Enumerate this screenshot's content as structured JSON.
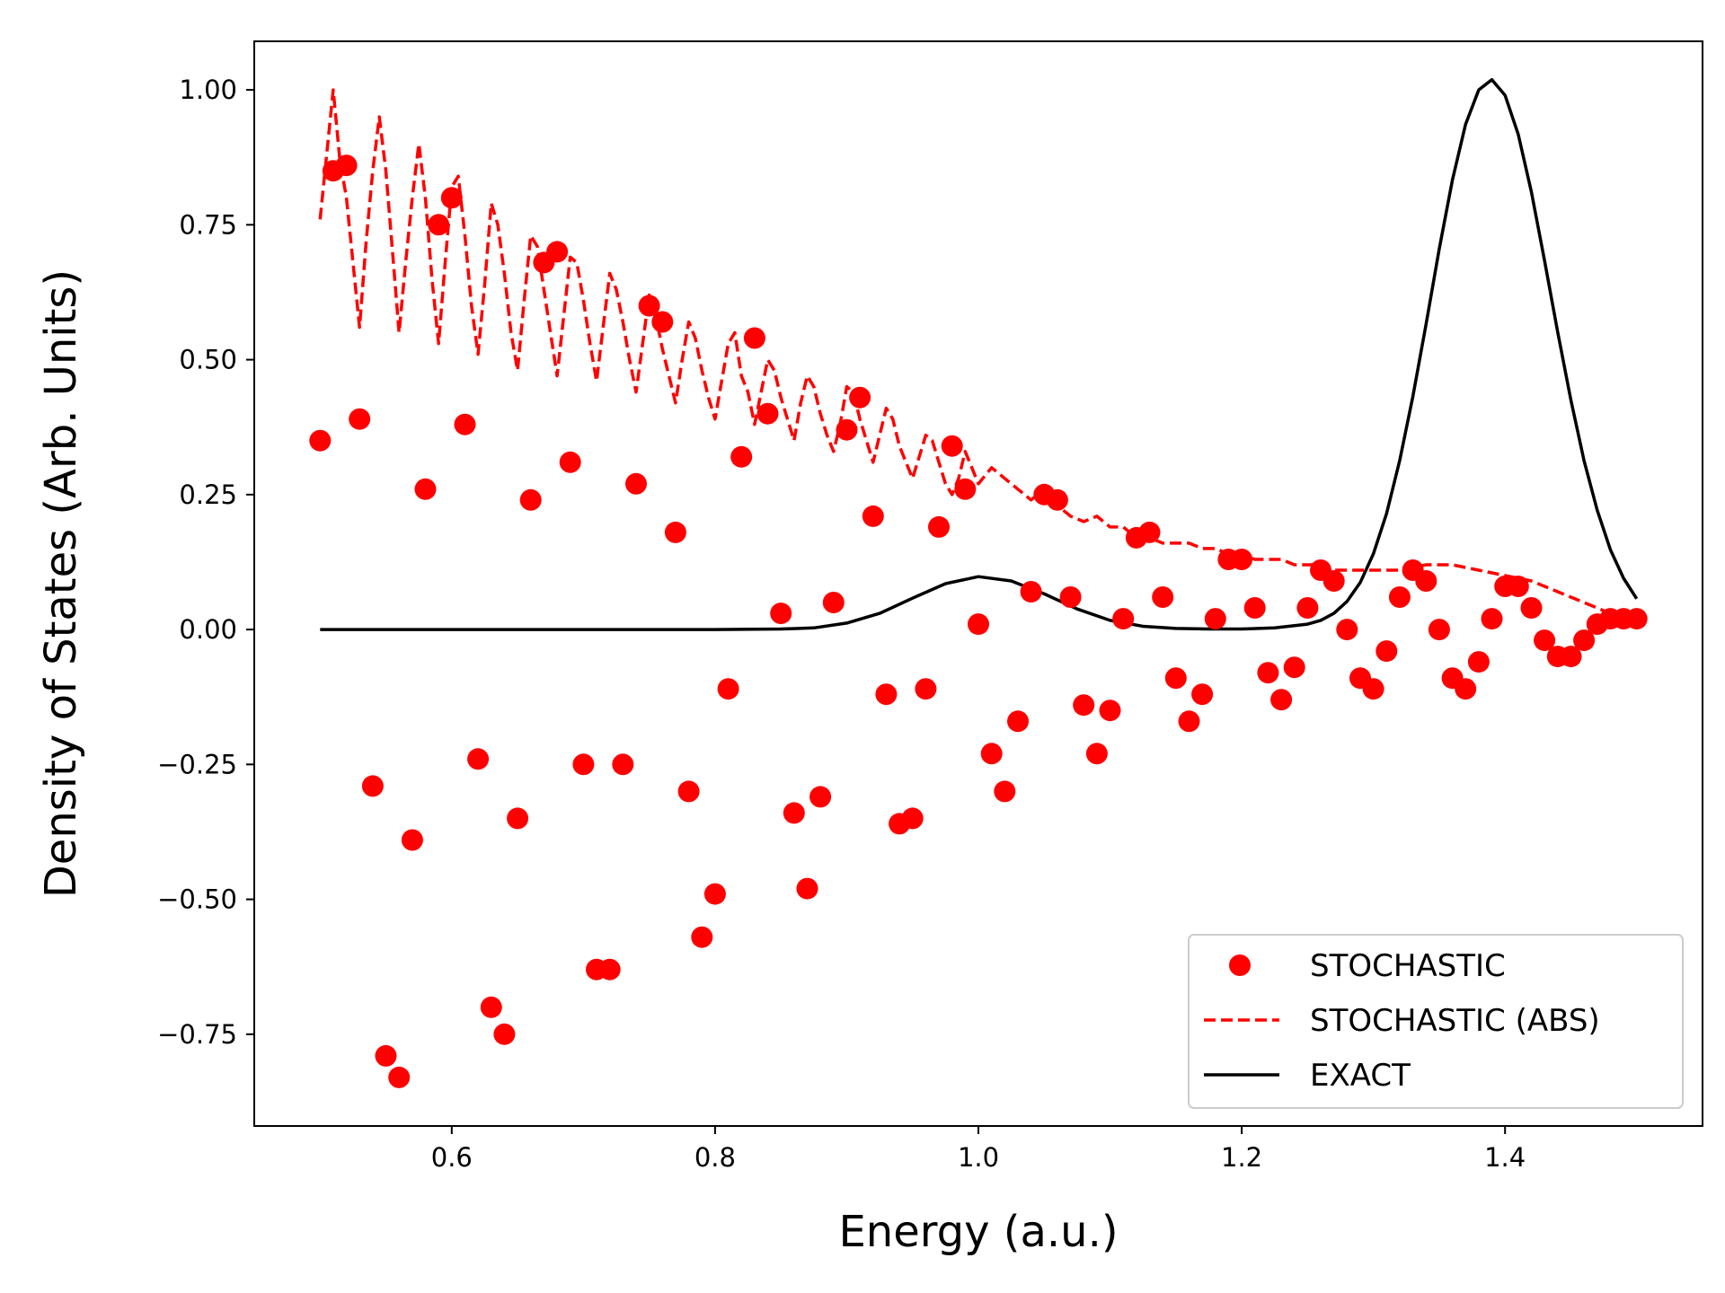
{
  "chart_data": {
    "type": "line",
    "title": "",
    "xlabel": "Energy (a.u.)",
    "ylabel": "Density of States (Arb. Units)",
    "xlim": [
      0.45,
      1.55
    ],
    "ylim": [
      -0.92,
      1.09
    ],
    "xticks": [
      0.6,
      0.8,
      1.0,
      1.2,
      1.4
    ],
    "xtick_labels": [
      "0.6",
      "0.8",
      "1.0",
      "1.2",
      "1.4"
    ],
    "yticks": [
      -0.75,
      -0.5,
      -0.25,
      0.0,
      0.25,
      0.5,
      0.75,
      1.0
    ],
    "ytick_labels": [
      "−0.75",
      "−0.50",
      "−0.25",
      "0.00",
      "0.25",
      "0.50",
      "0.75",
      "1.00"
    ],
    "grid": false,
    "legend_position": "bottom-right",
    "series": [
      {
        "name": "STOCHASTIC",
        "style": "markers",
        "color": "#ff0000",
        "x": [
          0.5,
          0.51,
          0.52,
          0.53,
          0.54,
          0.55,
          0.56,
          0.57,
          0.58,
          0.59,
          0.6,
          0.61,
          0.62,
          0.63,
          0.64,
          0.65,
          0.66,
          0.67,
          0.68,
          0.69,
          0.7,
          0.71,
          0.72,
          0.73,
          0.74,
          0.75,
          0.76,
          0.77,
          0.78,
          0.79,
          0.8,
          0.81,
          0.82,
          0.83,
          0.84,
          0.85,
          0.86,
          0.87,
          0.88,
          0.89,
          0.9,
          0.91,
          0.92,
          0.93,
          0.94,
          0.95,
          0.96,
          0.97,
          0.98,
          0.99,
          1.0,
          1.01,
          1.02,
          1.03,
          1.04,
          1.05,
          1.06,
          1.07,
          1.08,
          1.09,
          1.1,
          1.11,
          1.12,
          1.13,
          1.14,
          1.15,
          1.16,
          1.17,
          1.18,
          1.19,
          1.2,
          1.21,
          1.22,
          1.23,
          1.24,
          1.25,
          1.26,
          1.27,
          1.28,
          1.29,
          1.3,
          1.31,
          1.32,
          1.33,
          1.34,
          1.35,
          1.36,
          1.37,
          1.38,
          1.39,
          1.4,
          1.41,
          1.42,
          1.43,
          1.44,
          1.45,
          1.46,
          1.47,
          1.48,
          1.49,
          1.5
        ],
        "y": [
          0.35,
          0.85,
          0.86,
          0.39,
          -0.29,
          -0.79,
          -0.83,
          -0.39,
          0.26,
          0.75,
          0.8,
          0.38,
          -0.24,
          -0.7,
          -0.75,
          -0.35,
          0.24,
          0.68,
          0.7,
          0.31,
          -0.25,
          -0.63,
          -0.63,
          -0.25,
          0.27,
          0.6,
          0.57,
          0.18,
          -0.3,
          -0.57,
          -0.49,
          -0.11,
          0.32,
          0.54,
          0.4,
          0.03,
          -0.34,
          -0.48,
          -0.31,
          0.05,
          0.37,
          0.43,
          0.21,
          -0.12,
          -0.36,
          -0.35,
          -0.11,
          0.19,
          0.34,
          0.26,
          0.01,
          -0.23,
          -0.3,
          -0.17,
          0.07,
          0.25,
          0.24,
          0.06,
          -0.14,
          -0.23,
          -0.15,
          0.02,
          0.17,
          0.18,
          0.06,
          -0.09,
          -0.17,
          -0.12,
          0.02,
          0.13,
          0.13,
          0.04,
          -0.08,
          -0.13,
          -0.07,
          0.04,
          0.11,
          0.09,
          0.0,
          -0.09,
          -0.11,
          -0.04,
          0.06,
          0.11,
          0.09,
          0.0,
          -0.09,
          -0.11,
          -0.06,
          0.02,
          0.08,
          0.08,
          0.04,
          -0.02,
          -0.05,
          -0.05,
          -0.02,
          0.01,
          0.02,
          0.02,
          0.02
        ]
      },
      {
        "name": "STOCHASTIC (ABS)",
        "style": "dashed",
        "color": "#ff0000",
        "x": [
          0.5,
          0.505,
          0.51,
          0.515,
          0.52,
          0.525,
          0.53,
          0.535,
          0.54,
          0.545,
          0.55,
          0.555,
          0.56,
          0.565,
          0.57,
          0.575,
          0.58,
          0.585,
          0.59,
          0.595,
          0.6,
          0.605,
          0.61,
          0.615,
          0.62,
          0.625,
          0.63,
          0.635,
          0.64,
          0.645,
          0.65,
          0.655,
          0.66,
          0.665,
          0.67,
          0.675,
          0.68,
          0.685,
          0.69,
          0.695,
          0.7,
          0.705,
          0.71,
          0.715,
          0.72,
          0.725,
          0.73,
          0.735,
          0.74,
          0.745,
          0.75,
          0.755,
          0.76,
          0.765,
          0.77,
          0.775,
          0.78,
          0.785,
          0.79,
          0.795,
          0.8,
          0.805,
          0.81,
          0.815,
          0.82,
          0.825,
          0.83,
          0.835,
          0.84,
          0.845,
          0.85,
          0.855,
          0.86,
          0.865,
          0.87,
          0.875,
          0.88,
          0.885,
          0.89,
          0.895,
          0.9,
          0.905,
          0.91,
          0.915,
          0.92,
          0.925,
          0.93,
          0.935,
          0.94,
          0.945,
          0.95,
          0.955,
          0.96,
          0.965,
          0.97,
          0.975,
          0.98,
          0.985,
          0.99,
          0.995,
          1.0,
          1.01,
          1.02,
          1.03,
          1.04,
          1.05,
          1.06,
          1.07,
          1.08,
          1.09,
          1.1,
          1.11,
          1.12,
          1.13,
          1.14,
          1.15,
          1.16,
          1.17,
          1.18,
          1.19,
          1.2,
          1.21,
          1.22,
          1.23,
          1.24,
          1.25,
          1.26,
          1.27,
          1.28,
          1.29,
          1.3,
          1.32,
          1.34,
          1.36,
          1.38,
          1.4,
          1.42,
          1.44,
          1.46,
          1.48,
          1.5
        ],
        "y": [
          0.76,
          0.88,
          1.0,
          0.87,
          0.8,
          0.68,
          0.56,
          0.72,
          0.85,
          0.95,
          0.85,
          0.7,
          0.55,
          0.68,
          0.8,
          0.9,
          0.8,
          0.65,
          0.53,
          0.68,
          0.82,
          0.84,
          0.73,
          0.6,
          0.51,
          0.64,
          0.79,
          0.75,
          0.66,
          0.55,
          0.48,
          0.61,
          0.73,
          0.71,
          0.63,
          0.55,
          0.47,
          0.58,
          0.69,
          0.68,
          0.61,
          0.53,
          0.46,
          0.56,
          0.66,
          0.63,
          0.57,
          0.5,
          0.44,
          0.53,
          0.62,
          0.58,
          0.52,
          0.47,
          0.42,
          0.5,
          0.57,
          0.54,
          0.48,
          0.43,
          0.39,
          0.46,
          0.53,
          0.55,
          0.47,
          0.44,
          0.38,
          0.44,
          0.5,
          0.48,
          0.43,
          0.39,
          0.35,
          0.42,
          0.47,
          0.45,
          0.4,
          0.36,
          0.33,
          0.38,
          0.45,
          0.44,
          0.39,
          0.35,
          0.31,
          0.36,
          0.41,
          0.39,
          0.34,
          0.31,
          0.28,
          0.32,
          0.36,
          0.35,
          0.31,
          0.27,
          0.25,
          0.28,
          0.33,
          0.3,
          0.27,
          0.3,
          0.28,
          0.26,
          0.24,
          0.26,
          0.23,
          0.21,
          0.2,
          0.21,
          0.19,
          0.19,
          0.17,
          0.17,
          0.16,
          0.16,
          0.16,
          0.15,
          0.15,
          0.14,
          0.14,
          0.13,
          0.13,
          0.13,
          0.12,
          0.12,
          0.12,
          0.11,
          0.11,
          0.11,
          0.11,
          0.11,
          0.12,
          0.12,
          0.11,
          0.1,
          0.09,
          0.07,
          0.05,
          0.03,
          0.02
        ]
      },
      {
        "name": "EXACT",
        "style": "solid",
        "color": "#000000",
        "x": [
          0.5,
          0.6,
          0.7,
          0.8,
          0.85,
          0.875,
          0.9,
          0.925,
          0.95,
          0.975,
          1.0,
          1.025,
          1.05,
          1.075,
          1.1,
          1.125,
          1.15,
          1.175,
          1.2,
          1.225,
          1.25,
          1.26,
          1.27,
          1.28,
          1.29,
          1.3,
          1.31,
          1.32,
          1.33,
          1.34,
          1.35,
          1.36,
          1.37,
          1.38,
          1.39,
          1.4,
          1.41,
          1.42,
          1.43,
          1.44,
          1.45,
          1.46,
          1.47,
          1.48,
          1.49,
          1.5
        ],
        "y": [
          0.0,
          0.0,
          0.0,
          0.0,
          0.001,
          0.003,
          0.012,
          0.03,
          0.058,
          0.085,
          0.098,
          0.09,
          0.066,
          0.038,
          0.017,
          0.006,
          0.002,
          0.001,
          0.001,
          0.003,
          0.01,
          0.017,
          0.03,
          0.052,
          0.087,
          0.14,
          0.215,
          0.313,
          0.432,
          0.566,
          0.705,
          0.833,
          0.936,
          1.0,
          1.019,
          0.99,
          0.918,
          0.811,
          0.684,
          0.551,
          0.425,
          0.313,
          0.221,
          0.148,
          0.095,
          0.057
        ]
      }
    ]
  }
}
